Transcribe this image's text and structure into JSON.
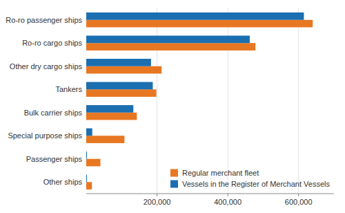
{
  "chart_data": {
    "type": "bar",
    "orientation": "horizontal",
    "categories": [
      "Ro-ro passenger ships",
      "Ro-ro cargo ships",
      "Other dry cargo ships",
      "Tankers",
      "Bulk carrier ships",
      "Special purpose ships",
      "Passenger ships",
      "Other ships"
    ],
    "series": [
      {
        "name": "Regular merchant fleet",
        "color": "#e87722",
        "values": [
          640000,
          478000,
          213000,
          198000,
          143000,
          108000,
          40000,
          16000
        ]
      },
      {
        "name": "Vessels in the Register of Merchant Vessels",
        "color": "#1b6fb0",
        "values": [
          615000,
          462000,
          183000,
          188000,
          133000,
          17000,
          2000,
          2000
        ]
      }
    ],
    "xlim": [
      0,
      700000
    ],
    "xticks": [
      {
        "value": 200000,
        "label": "200,000"
      },
      {
        "value": 400000,
        "label": "400,000"
      },
      {
        "value": 600000,
        "label": "600,000"
      }
    ],
    "grid": true,
    "legend": "lower right"
  }
}
